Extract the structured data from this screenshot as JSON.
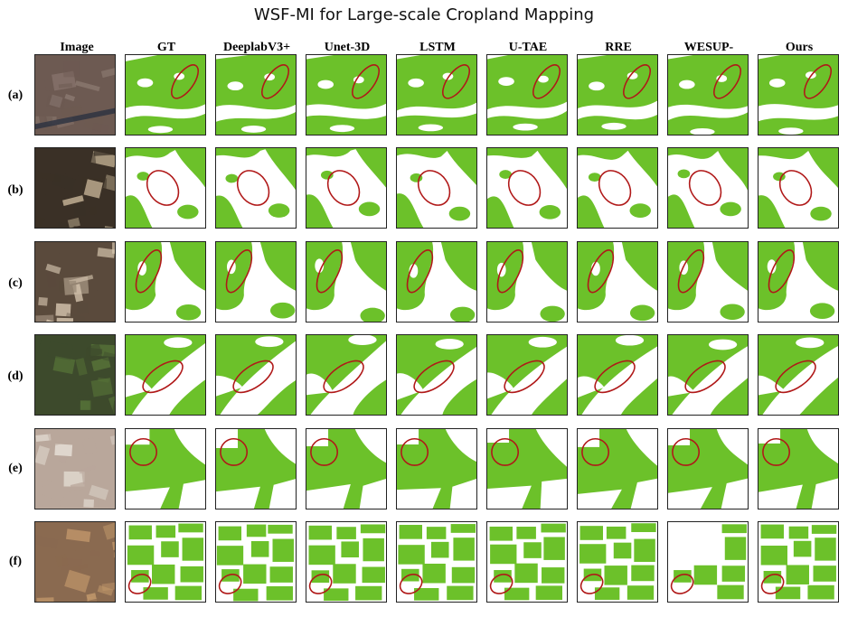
{
  "figure": {
    "title": "WSF-MI for Large-scale Cropland Mapping",
    "column_headers": [
      "Image",
      "GT",
      "DeeplabV3+",
      "Unet-3D",
      "LSTM",
      "U-TAE",
      "RRE",
      "WESUP-",
      "Ours"
    ],
    "row_labels": [
      "(a)",
      "(b)",
      "(c)",
      "(d)",
      "(e)",
      "(f)"
    ],
    "colors": {
      "cropland": "#6cc12a",
      "background": "#ffffff",
      "highlight_ellipse": "#b01818",
      "tile_border": "#222222"
    }
  }
}
